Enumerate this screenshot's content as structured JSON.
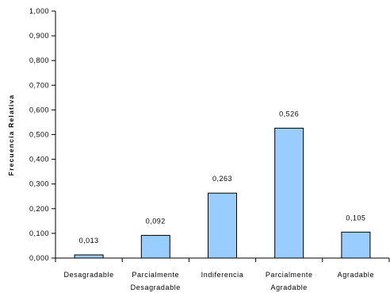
{
  "chart_data": {
    "type": "bar",
    "title": "",
    "xlabel": "",
    "ylabel": "Frecuencia Relativa",
    "categories": [
      [
        "Desagradable"
      ],
      [
        "Parcialmente",
        "Desagradable"
      ],
      [
        "Indiferencia"
      ],
      [
        "Parcialmente",
        "Agradable"
      ],
      [
        "Agradable"
      ]
    ],
    "values": [
      0.013,
      0.092,
      0.263,
      0.526,
      0.105
    ],
    "data_labels": [
      "0,013",
      "0,092",
      "0,263",
      "0,526",
      "0,105"
    ],
    "ylim": [
      0,
      1
    ],
    "yticks": [
      0,
      0.1,
      0.2,
      0.3,
      0.4,
      0.5,
      0.6,
      0.7,
      0.8,
      0.9,
      1.0
    ],
    "ytick_labels": [
      "0,000",
      "0,100",
      "0,200",
      "0,300",
      "0,400",
      "0,500",
      "0,600",
      "0,700",
      "0,800",
      "0,900",
      "1,000"
    ],
    "grid": false,
    "legend": "none",
    "colors": {
      "bar_fill": "#99ccff",
      "bar_stroke": "#000000",
      "axis": "#000000"
    }
  }
}
